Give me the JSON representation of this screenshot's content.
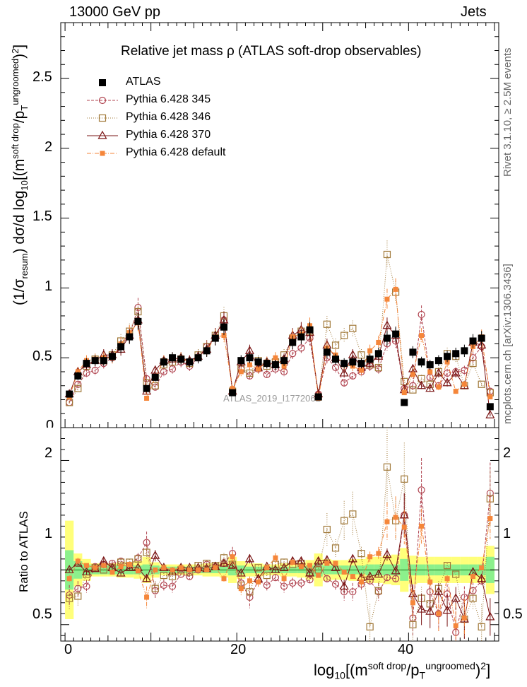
{
  "header": {
    "left": "13000 GeV pp",
    "right": "Jets"
  },
  "side_text": {
    "rivet": "Rivet 3.1.10, ≥ 2.5M events",
    "mcplots": "mcplots.cern.ch [arXiv:1306.3436]"
  },
  "watermark": "ATLAS_2019_I1772062",
  "colors": {
    "atlas": "#000000",
    "p345": "#b0434f",
    "p346": "#a07838",
    "p370": "#7a1414",
    "pdef": "#f5863a",
    "band_inner": "#8cf08c",
    "band_outer": "#ffff7a"
  },
  "chart_data": [
    {
      "type": "scatter",
      "title": "Relative jet mass  ρ (ATLAS soft-drop observables)",
      "ylabel": "(1/σresum) dσ/d log10[(m soft drop/pT ungroomed)2]",
      "ylabel_parts": {
        "a": "(1/σ",
        "b": "resum",
        "c": ") dσ/d log",
        "d": "10",
        "e": "[(m",
        "f": "soft drop",
        "g": "/p",
        "h": "T",
        "i": "ungroomed",
        "j": ")",
        "k": "2",
        "l": "]"
      },
      "xlim": [
        -0.5,
        50.5
      ],
      "ylim": [
        0,
        2.9
      ],
      "ytick_labels": [
        "0.5",
        "1",
        "1.5",
        "2",
        "2.5"
      ],
      "yticks": [
        0.5,
        1,
        1.5,
        2,
        2.5
      ],
      "y0_label": "0",
      "legend_position": "top-left",
      "x": [
        0.5,
        1.5,
        2.5,
        3.5,
        4.5,
        5.5,
        6.5,
        7.5,
        8.5,
        9.5,
        10.5,
        11.5,
        12.5,
        13.5,
        14.5,
        15.5,
        16.5,
        17.5,
        18.5,
        19.5,
        20.5,
        21.5,
        22.5,
        23.5,
        24.5,
        25.5,
        26.5,
        27.5,
        28.5,
        29.5,
        30.5,
        31.5,
        32.5,
        33.5,
        34.5,
        35.5,
        36.5,
        37.5,
        38.5,
        39.5,
        40.5,
        41.5,
        42.5,
        43.5,
        44.5,
        45.5,
        46.5,
        47.5,
        48.5,
        49.5
      ],
      "series": [
        {
          "name": "ATLAS",
          "marker": "square-filled",
          "values": [
            0.24,
            0.37,
            0.46,
            0.48,
            0.48,
            0.51,
            0.58,
            0.65,
            0.76,
            0.28,
            0.36,
            0.47,
            0.5,
            0.49,
            0.47,
            0.5,
            0.55,
            0.64,
            0.72,
            0.25,
            0.48,
            0.5,
            0.47,
            0.46,
            0.45,
            0.48,
            0.61,
            0.65,
            0.7,
            0.22,
            0.54,
            0.49,
            0.46,
            0.47,
            0.46,
            0.49,
            0.53,
            0.64,
            0.67,
            0.18,
            0.54,
            0.47,
            0.45,
            0.48,
            0.51,
            0.53,
            0.55,
            0.62,
            0.64,
            0.15
          ]
        },
        {
          "name": "Pythia 6.428 345",
          "marker": "circle-open",
          "values": [
            0.18,
            0.31,
            0.39,
            0.41,
            0.46,
            0.5,
            0.59,
            0.66,
            0.86,
            0.35,
            0.29,
            0.4,
            0.42,
            0.47,
            0.44,
            0.5,
            0.58,
            0.64,
            0.77,
            0.27,
            0.42,
            0.37,
            0.42,
            0.38,
            0.42,
            0.4,
            0.53,
            0.57,
            0.64,
            0.24,
            0.5,
            0.43,
            0.32,
            0.37,
            0.4,
            0.44,
            0.42,
            0.6,
            0.62,
            0.28,
            0.3,
            0.81,
            0.36,
            0.3,
            0.39,
            0.4,
            0.41,
            0.5,
            0.58,
            0.26
          ]
        },
        {
          "name": "Pythia 6.428 346",
          "marker": "square-open",
          "values": [
            0.18,
            0.28,
            0.44,
            0.49,
            0.48,
            0.52,
            0.62,
            0.69,
            0.83,
            0.32,
            0.3,
            0.45,
            0.47,
            0.49,
            0.46,
            0.52,
            0.58,
            0.66,
            0.8,
            0.26,
            0.42,
            0.39,
            0.48,
            0.44,
            0.47,
            0.52,
            0.64,
            0.69,
            0.69,
            0.22,
            0.74,
            0.59,
            0.66,
            0.71,
            0.52,
            0.45,
            0.43,
            1.24,
            0.97,
            0.33,
            0.27,
            0.35,
            0.31,
            0.4,
            0.53,
            0.51,
            0.3,
            0.46,
            0.31,
            0.25
          ]
        },
        {
          "name": "Pythia 6.428 370",
          "marker": "triangle-open",
          "values": [
            0.24,
            0.4,
            0.45,
            0.48,
            0.52,
            0.52,
            0.56,
            0.66,
            0.77,
            0.26,
            0.41,
            0.48,
            0.49,
            0.5,
            0.48,
            0.51,
            0.56,
            0.66,
            0.77,
            0.26,
            0.47,
            0.55,
            0.43,
            0.47,
            0.45,
            0.49,
            0.66,
            0.7,
            0.68,
            0.24,
            0.59,
            0.5,
            0.39,
            0.52,
            0.43,
            0.46,
            0.51,
            0.73,
            0.66,
            0.27,
            0.42,
            0.3,
            0.28,
            0.39,
            0.32,
            0.39,
            0.3,
            0.61,
            0.59,
            0.09
          ]
        },
        {
          "name": "Pythia 6.428 default",
          "marker": "square-small-filled",
          "values": [
            0.22,
            0.4,
            0.48,
            0.49,
            0.5,
            0.5,
            0.6,
            0.68,
            0.75,
            0.21,
            0.36,
            0.48,
            0.5,
            0.5,
            0.47,
            0.5,
            0.55,
            0.65,
            0.66,
            0.28,
            0.4,
            0.45,
            0.42,
            0.47,
            0.5,
            0.44,
            0.65,
            0.67,
            0.73,
            0.21,
            0.57,
            0.52,
            0.45,
            0.44,
            0.41,
            0.55,
            0.61,
            0.92,
            0.99,
            0.25,
            0.38,
            0.66,
            0.4,
            0.29,
            0.47,
            0.26,
            0.31,
            0.58,
            0.65,
            0.22
          ]
        }
      ]
    },
    {
      "type": "scatter",
      "ylabel": "Ratio to ATLAS",
      "xlabel": "log10[(m soft drop/pT ungroomed)2]",
      "xlabel_parts": {
        "a": "log",
        "b": "10",
        "c": "[(m",
        "d": "soft drop",
        "e": "/p",
        "f": "T",
        "g": "ungroomed",
        "h": ")",
        "i": "2",
        "j": "]"
      },
      "xlim": [
        -0.5,
        50.5
      ],
      "ylim": [
        0.35,
        2.3
      ],
      "yticks": [
        0.5,
        1,
        2
      ],
      "ytick_labels": [
        "0.5",
        "1",
        "2"
      ],
      "xticks": [
        0,
        20,
        40
      ],
      "xtick_labels": [
        "0",
        "20",
        "40"
      ],
      "x": [
        0.5,
        1.5,
        2.5,
        3.5,
        4.5,
        5.5,
        6.5,
        7.5,
        8.5,
        9.5,
        10.5,
        11.5,
        12.5,
        13.5,
        14.5,
        15.5,
        16.5,
        17.5,
        18.5,
        19.5,
        20.5,
        21.5,
        22.5,
        23.5,
        24.5,
        25.5,
        26.5,
        27.5,
        28.5,
        29.5,
        30.5,
        31.5,
        32.5,
        33.5,
        34.5,
        35.5,
        36.5,
        37.5,
        38.5,
        39.5,
        40.5,
        41.5,
        42.5,
        43.5,
        44.5,
        45.5,
        46.5,
        47.5,
        48.5,
        49.5
      ],
      "series": [
        {
          "name": "Pythia 6.428 345",
          "marker": "circle-open",
          "values": [
            0.77,
            0.83,
            0.85,
            1.03,
            1.05,
            1.06,
            1.08,
            1.04,
            1.11,
            1.25,
            0.81,
            0.86,
            0.85,
            0.96,
            0.94,
            1.0,
            1.05,
            1.03,
            1.06,
            1.15,
            0.88,
            0.75,
            0.9,
            0.86,
            0.93,
            0.85,
            0.88,
            0.88,
            0.91,
            1.06,
            0.92,
            0.87,
            0.8,
            0.8,
            0.87,
            0.9,
            0.8,
            0.93,
            0.92,
            1.5,
            0.56,
            1.73,
            0.8,
            0.6,
            0.78,
            0.43,
            0.75,
            0.81,
            0.9,
            1.7
          ]
        },
        {
          "name": "Pythia 6.428 346",
          "marker": "square-open",
          "values": [
            0.74,
            0.76,
            0.96,
            1.02,
            1.0,
            1.02,
            1.07,
            1.07,
            1.1,
            1.16,
            0.83,
            0.95,
            0.94,
            1.0,
            0.98,
            1.04,
            1.06,
            1.04,
            1.11,
            1.05,
            0.86,
            0.8,
            1.02,
            0.95,
            1.05,
            1.07,
            1.05,
            1.06,
            0.98,
            1.0,
            1.37,
            1.2,
            1.45,
            1.51,
            1.15,
            0.48,
            0.81,
            1.94,
            1.45,
            1.83,
            0.5,
            0.74,
            0.69,
            0.83,
            1.04,
            0.96,
            0.55,
            0.74,
            0.48,
            1.65
          ]
        },
        {
          "name": "Pythia 6.428 370",
          "marker": "triangle-open",
          "values": [
            1.0,
            1.06,
            0.98,
            1.01,
            1.08,
            1.02,
            0.97,
            1.02,
            1.02,
            0.92,
            1.13,
            1.02,
            0.98,
            1.02,
            1.02,
            1.02,
            1.01,
            1.03,
            1.06,
            1.04,
            0.97,
            1.1,
            0.92,
            1.03,
            1.0,
            1.02,
            1.08,
            1.08,
            0.97,
            1.08,
            1.09,
            1.02,
            0.85,
            1.1,
            0.93,
            0.94,
            0.96,
            1.14,
            0.99,
            1.5,
            0.78,
            0.64,
            0.62,
            0.8,
            0.63,
            0.74,
            0.55,
            0.98,
            0.92,
            0.57
          ]
        },
        {
          "name": "Pythia 6.428 default",
          "marker": "square-small-filled",
          "values": [
            0.92,
            1.08,
            1.04,
            1.02,
            1.04,
            0.98,
            1.03,
            1.05,
            0.99,
            0.75,
            1.0,
            1.02,
            1.0,
            1.02,
            1.0,
            1.0,
            1.0,
            1.02,
            0.92,
            1.12,
            0.83,
            0.9,
            0.89,
            1.02,
            1.11,
            0.92,
            1.07,
            1.03,
            1.04,
            0.95,
            1.06,
            1.06,
            0.98,
            0.94,
            0.89,
            1.12,
            1.15,
            1.44,
            1.48,
            1.39,
            0.7,
            1.4,
            0.89,
            0.6,
            0.92,
            0.49,
            0.56,
            0.94,
            1.02,
            1.47
          ]
        }
      ],
      "band_inner": [
        0.18,
        0.08,
        0.05,
        0.04,
        0.04,
        0.04,
        0.04,
        0.04,
        0.04,
        0.05,
        0.04,
        0.03,
        0.03,
        0.03,
        0.03,
        0.03,
        0.03,
        0.03,
        0.03,
        0.05,
        0.04,
        0.03,
        0.03,
        0.03,
        0.03,
        0.03,
        0.03,
        0.03,
        0.04,
        0.06,
        0.04,
        0.04,
        0.04,
        0.04,
        0.04,
        0.05,
        0.05,
        0.05,
        0.05,
        0.1,
        0.05,
        0.05,
        0.05,
        0.05,
        0.05,
        0.05,
        0.05,
        0.05,
        0.05,
        0.12
      ],
      "band_outer": [
        0.45,
        0.15,
        0.1,
        0.06,
        0.06,
        0.06,
        0.07,
        0.07,
        0.08,
        0.12,
        0.07,
        0.05,
        0.05,
        0.05,
        0.05,
        0.05,
        0.06,
        0.06,
        0.07,
        0.12,
        0.08,
        0.06,
        0.06,
        0.05,
        0.05,
        0.06,
        0.06,
        0.07,
        0.09,
        0.15,
        0.1,
        0.09,
        0.09,
        0.1,
        0.1,
        0.12,
        0.12,
        0.13,
        0.14,
        0.2,
        0.13,
        0.12,
        0.12,
        0.12,
        0.12,
        0.12,
        0.12,
        0.12,
        0.12,
        0.22
      ]
    }
  ]
}
